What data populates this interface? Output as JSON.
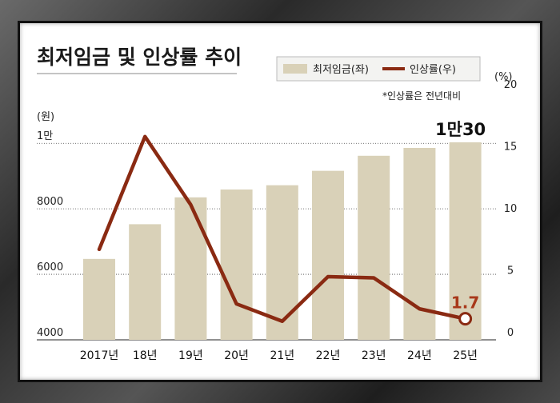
{
  "colors": {
    "bar": "#d9d1b8",
    "line": "#8a2a12",
    "line_label": "#a8381a",
    "grid": "#444444"
  },
  "chart_data": {
    "type": "bar+line",
    "title": "최저임금 및 인상률 추이",
    "categories": [
      "2017년",
      "18년",
      "19년",
      "20년",
      "21년",
      "22년",
      "23년",
      "24년",
      "25년"
    ],
    "series": [
      {
        "name": "최저임금(좌)",
        "type": "bar",
        "axis": "left",
        "values": [
          6470,
          7530,
          8350,
          8590,
          8720,
          9160,
          9620,
          9860,
          10030
        ]
      },
      {
        "name": "인상률(우)",
        "type": "line",
        "axis": "right",
        "values": [
          7.3,
          16.4,
          10.9,
          2.9,
          1.5,
          5.1,
          5.0,
          2.5,
          1.7
        ]
      }
    ],
    "left_axis": {
      "unit": "(원)",
      "ylim": [
        4000,
        10030
      ],
      "ticks": [
        {
          "value": 4000,
          "label": "4000"
        },
        {
          "value": 6000,
          "label": "6000"
        },
        {
          "value": 8000,
          "label": "8000"
        },
        {
          "value": 10000,
          "label": "1만"
        }
      ]
    },
    "right_axis": {
      "unit": "(%)",
      "ylim": [
        0,
        20
      ],
      "ticks": [
        {
          "value": 0,
          "label": "0"
        },
        {
          "value": 5,
          "label": "5"
        },
        {
          "value": 10,
          "label": "10"
        },
        {
          "value": 15,
          "label": "15"
        },
        {
          "value": 20,
          "label": "20"
        }
      ]
    },
    "legend": {
      "placement": "top-right",
      "bar_label": "최저임금(좌)",
      "line_label": "인상률(우)"
    },
    "note": "*인상률은 전년대비",
    "annotations": {
      "last_bar": "1만30",
      "last_line": "1.7"
    },
    "grid": true
  }
}
